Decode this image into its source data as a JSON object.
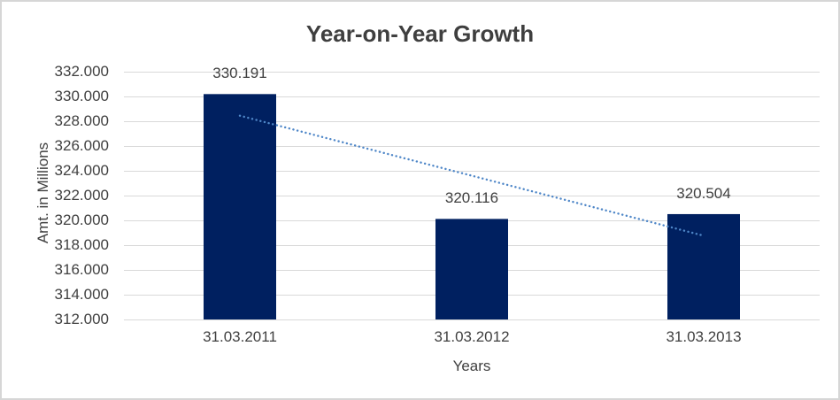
{
  "window": {
    "background": "#ffffff",
    "border_color": "#d6d6d6"
  },
  "chart_data": {
    "type": "bar",
    "title": "Year-on-Year Growth",
    "xlabel": "Years",
    "ylabel": "Amt. in Millions",
    "categories": [
      "31.03.2011",
      "31.03.2012",
      "31.03.2013"
    ],
    "values": [
      330.191,
      320.116,
      320.504
    ],
    "data_labels": [
      "330.191",
      "320.116",
      "320.504"
    ],
    "ylim": [
      312,
      332
    ],
    "ytick_values": [
      332,
      330,
      328,
      326,
      324,
      322,
      320,
      318,
      316,
      314,
      312
    ],
    "ytick_labels": [
      "332.000",
      "330.000",
      "328.000",
      "326.000",
      "324.000",
      "322.000",
      "320.000",
      "318.000",
      "316.000",
      "314.000",
      "312.000"
    ],
    "grid": true,
    "legend_position": "none",
    "colors": {
      "bar": "#002060",
      "trendline": "#4f87c8",
      "gridline": "#d9d9d9",
      "axis_text": "#404040",
      "title_text": "#3f3f3f"
    },
    "trendline": {
      "type": "linear",
      "style": "dotted",
      "start_value": 328.45,
      "end_value": 318.76
    }
  }
}
